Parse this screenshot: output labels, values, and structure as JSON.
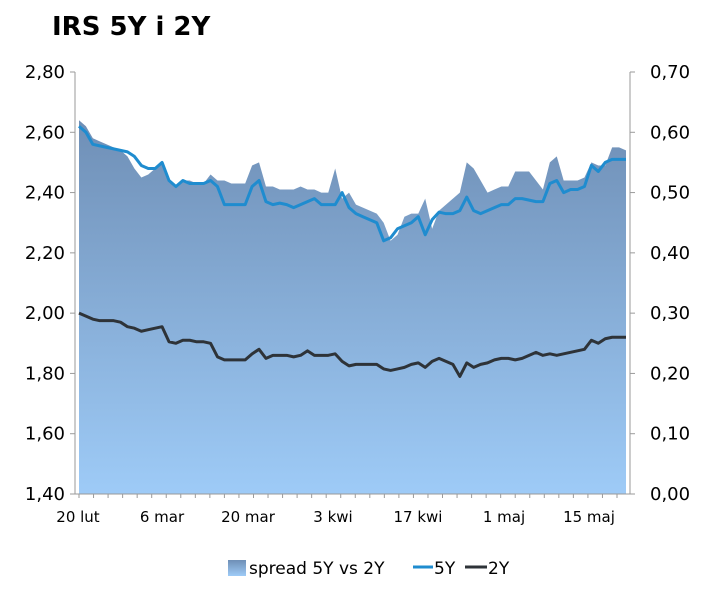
{
  "chart_data": {
    "type": "line",
    "title": "IRS 5Y i 2Y",
    "x_tick_labels": [
      "20 lut",
      "6 mar",
      "20 mar",
      "3 kwi",
      "17 kwi",
      "1 maj",
      "15 maj"
    ],
    "y_left": {
      "min": 1.4,
      "max": 2.8,
      "ticks": [
        "1,40",
        "1,60",
        "1,80",
        "2,00",
        "2,20",
        "2,40",
        "2,60",
        "2,80"
      ]
    },
    "y_right": {
      "min": 0.0,
      "max": 0.7,
      "ticks": [
        "0,00",
        "0,10",
        "0,20",
        "0,30",
        "0,40",
        "0,50",
        "0,60",
        "0,70"
      ]
    },
    "legend": {
      "placement": "bottom",
      "labels": [
        "spread 5Y vs 2Y",
        "5Y",
        "2Y"
      ]
    },
    "colors": {
      "spread_top": "#6f8fb6",
      "spread_bottom": "#9ecbf7",
      "line_5y": "#1f8ccf",
      "line_2y": "#2e3338",
      "axis": "#9a9a9a"
    },
    "series": [
      {
        "name": "spread 5Y vs 2Y",
        "axis": "right",
        "type": "area",
        "values": [
          0.62,
          0.61,
          0.59,
          0.585,
          0.58,
          0.575,
          0.57,
          0.56,
          0.54,
          0.525,
          0.53,
          0.54,
          0.55,
          0.52,
          0.51,
          0.52,
          0.52,
          0.515,
          0.515,
          0.53,
          0.52,
          0.52,
          0.515,
          0.515,
          0.515,
          0.545,
          0.55,
          0.51,
          0.51,
          0.505,
          0.505,
          0.505,
          0.51,
          0.505,
          0.505,
          0.5,
          0.5,
          0.54,
          0.49,
          0.5,
          0.48,
          0.475,
          0.47,
          0.465,
          0.45,
          0.42,
          0.43,
          0.46,
          0.465,
          0.465,
          0.49,
          0.44,
          0.47,
          0.48,
          0.49,
          0.5,
          0.55,
          0.54,
          0.52,
          0.5,
          0.505,
          0.51,
          0.51,
          0.535,
          0.535,
          0.535,
          0.52,
          0.505,
          0.55,
          0.56,
          0.52,
          0.52,
          0.52,
          0.525,
          0.55,
          0.545,
          0.545,
          0.575,
          0.575,
          0.57
        ]
      },
      {
        "name": "5Y",
        "axis": "left",
        "type": "line",
        "values": [
          2.62,
          2.6,
          2.56,
          2.555,
          2.55,
          2.545,
          2.54,
          2.535,
          2.52,
          2.49,
          2.48,
          2.48,
          2.5,
          2.44,
          2.42,
          2.44,
          2.43,
          2.43,
          2.43,
          2.44,
          2.42,
          2.36,
          2.36,
          2.36,
          2.36,
          2.42,
          2.44,
          2.37,
          2.36,
          2.365,
          2.36,
          2.35,
          2.36,
          2.37,
          2.38,
          2.36,
          2.36,
          2.36,
          2.4,
          2.35,
          2.33,
          2.32,
          2.31,
          2.3,
          2.24,
          2.25,
          2.28,
          2.29,
          2.3,
          2.32,
          2.26,
          2.31,
          2.335,
          2.33,
          2.33,
          2.34,
          2.385,
          2.34,
          2.33,
          2.34,
          2.35,
          2.36,
          2.36,
          2.38,
          2.38,
          2.375,
          2.37,
          2.37,
          2.43,
          2.44,
          2.4,
          2.41,
          2.41,
          2.42,
          2.49,
          2.47,
          2.5,
          2.51,
          2.51,
          2.51
        ]
      },
      {
        "name": "2Y",
        "axis": "left",
        "type": "line",
        "values": [
          2.0,
          1.99,
          1.98,
          1.975,
          1.975,
          1.975,
          1.97,
          1.955,
          1.95,
          1.94,
          1.945,
          1.95,
          1.955,
          1.905,
          1.9,
          1.91,
          1.91,
          1.905,
          1.905,
          1.9,
          1.855,
          1.845,
          1.845,
          1.845,
          1.845,
          1.865,
          1.88,
          1.85,
          1.86,
          1.86,
          1.86,
          1.855,
          1.86,
          1.875,
          1.86,
          1.86,
          1.86,
          1.865,
          1.84,
          1.825,
          1.83,
          1.83,
          1.83,
          1.83,
          1.815,
          1.81,
          1.815,
          1.82,
          1.83,
          1.835,
          1.82,
          1.84,
          1.85,
          1.84,
          1.83,
          1.79,
          1.835,
          1.82,
          1.83,
          1.835,
          1.845,
          1.85,
          1.85,
          1.845,
          1.85,
          1.86,
          1.87,
          1.86,
          1.865,
          1.86,
          1.865,
          1.87,
          1.875,
          1.88,
          1.91,
          1.9,
          1.915,
          1.92,
          1.92,
          1.92
        ]
      }
    ]
  }
}
